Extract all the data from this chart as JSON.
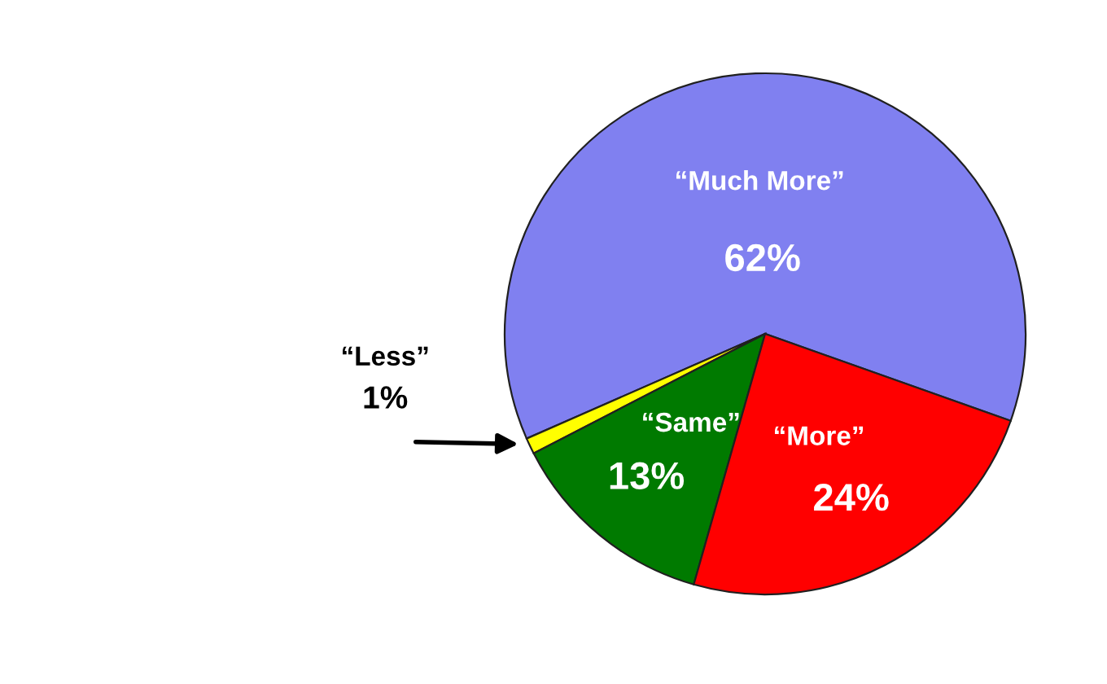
{
  "chart_data": {
    "type": "pie",
    "categories": [
      "“Much More”",
      "“Less”",
      "“Same”",
      "“More”"
    ],
    "values": [
      62,
      1,
      13,
      24
    ],
    "value_labels": [
      "62%",
      "1%",
      "13%",
      "24%"
    ],
    "colors": [
      "#8080f0",
      "#ffff00",
      "#007a00",
      "#ff0000"
    ]
  }
}
